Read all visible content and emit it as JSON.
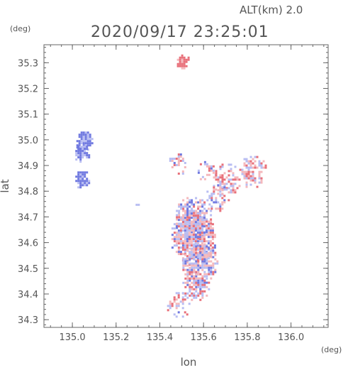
{
  "header": {
    "altitude_label": "ALT(km)  2.0",
    "timestamp": "2020/09/17 23:25:01"
  },
  "axes": {
    "y_unit": "(deg)",
    "x_unit": "(deg)",
    "ylabel": "lat",
    "xlabel": "lon",
    "lon_range": [
      134.87,
      136.17
    ],
    "lat_range": [
      34.27,
      35.37
    ],
    "x_ticks": [
      {
        "value": 135.0,
        "label": "135.0"
      },
      {
        "value": 135.2,
        "label": "135.2"
      },
      {
        "value": 135.4,
        "label": "135.4"
      },
      {
        "value": 135.6,
        "label": "135.6"
      },
      {
        "value": 135.8,
        "label": "135.8"
      },
      {
        "value": 136.0,
        "label": "136.0"
      }
    ],
    "y_ticks": [
      {
        "value": 34.3,
        "label": "34.3"
      },
      {
        "value": 34.4,
        "label": "34.4"
      },
      {
        "value": 34.5,
        "label": "34.5"
      },
      {
        "value": 34.6,
        "label": "34.6"
      },
      {
        "value": 34.7,
        "label": "34.7"
      },
      {
        "value": 34.8,
        "label": "34.8"
      },
      {
        "value": 34.9,
        "label": "34.9"
      },
      {
        "value": 35.0,
        "label": "35.0"
      },
      {
        "value": 35.1,
        "label": "35.1"
      },
      {
        "value": 35.2,
        "label": "35.2"
      },
      {
        "value": 35.3,
        "label": "35.3"
      }
    ]
  },
  "colors": {
    "positive": "#e8707a",
    "positive_light": "#f4b8bc",
    "negative": "#7079e0",
    "negative_light": "#b8bdf2",
    "axis": "#666666"
  },
  "chart_data": {
    "type": "map",
    "clusters": [
      {
        "lon": 135.5,
        "lat": 35.31,
        "r": 0.025,
        "bias": 1.0,
        "density": 0.9
      },
      {
        "lon": 135.05,
        "lat": 35.0,
        "r": 0.035,
        "bias": -1.0,
        "density": 0.9
      },
      {
        "lon": 135.04,
        "lat": 34.95,
        "r": 0.03,
        "bias": -1.0,
        "density": 0.9
      },
      {
        "lon": 135.04,
        "lat": 34.85,
        "r": 0.03,
        "bias": -1.0,
        "density": 0.9
      },
      {
        "lon": 135.48,
        "lat": 34.91,
        "r": 0.04,
        "bias": 0.2,
        "density": 0.35
      },
      {
        "lon": 135.61,
        "lat": 34.88,
        "r": 0.04,
        "bias": 0.0,
        "density": 0.35
      },
      {
        "lon": 135.7,
        "lat": 34.85,
        "r": 0.06,
        "bias": 0.3,
        "density": 0.55
      },
      {
        "lon": 135.82,
        "lat": 34.88,
        "r": 0.06,
        "bias": 0.3,
        "density": 0.6
      },
      {
        "lon": 135.66,
        "lat": 34.78,
        "r": 0.05,
        "bias": 0.0,
        "density": 0.45
      },
      {
        "lon": 135.55,
        "lat": 34.7,
        "r": 0.08,
        "bias": 0.0,
        "density": 0.8
      },
      {
        "lon": 135.55,
        "lat": 34.62,
        "r": 0.1,
        "bias": 0.0,
        "density": 0.85
      },
      {
        "lon": 135.58,
        "lat": 34.52,
        "r": 0.08,
        "bias": -0.2,
        "density": 0.8
      },
      {
        "lon": 135.56,
        "lat": 34.44,
        "r": 0.06,
        "bias": 0.2,
        "density": 0.6
      },
      {
        "lon": 135.48,
        "lat": 34.36,
        "r": 0.05,
        "bias": 0.2,
        "density": 0.35
      },
      {
        "lon": 135.29,
        "lat": 34.75,
        "r": 0.004,
        "bias": -1.0,
        "density": 1.0
      }
    ]
  }
}
